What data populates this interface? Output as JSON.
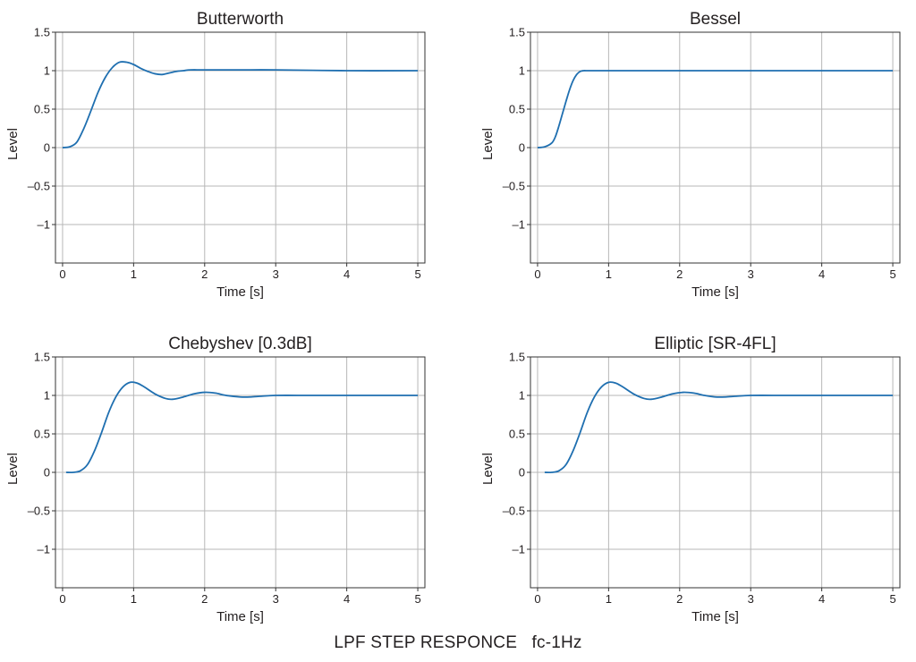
{
  "caption": "LPF STEP RESPONCE   fc-1Hz",
  "chart_data": [
    {
      "type": "line",
      "title": "Butterworth",
      "xlabel": "Time [s]",
      "ylabel": "Level",
      "xlim": [
        -0.1,
        5.1
      ],
      "ylim": [
        -1.5,
        1.5
      ],
      "xticks": [
        0,
        1,
        2,
        3,
        4,
        5
      ],
      "yticks": [
        1.5,
        1,
        0.5,
        0,
        -0.5,
        -1
      ],
      "ytick_labels": [
        "1.5",
        "1",
        "0.5",
        "0",
        "–0.5",
        "–1"
      ],
      "grid": true,
      "line_color": "#1f6fb0",
      "series": [
        {
          "x": [
            0,
            0.1,
            0.2,
            0.3,
            0.4,
            0.5,
            0.6,
            0.7,
            0.8,
            0.9,
            1.0,
            1.1,
            1.2,
            1.3,
            1.4,
            1.5,
            1.6,
            1.7,
            1.8,
            2.0,
            2.5,
            3.0,
            4.0,
            5.0
          ],
          "y": [
            0,
            0.01,
            0.07,
            0.25,
            0.48,
            0.72,
            0.91,
            1.04,
            1.11,
            1.11,
            1.08,
            1.03,
            0.99,
            0.96,
            0.95,
            0.97,
            0.99,
            1.0,
            1.01,
            1.01,
            1.01,
            1.01,
            1.0,
            1.0
          ]
        }
      ]
    },
    {
      "type": "line",
      "title": "Bessel",
      "xlabel": "Time [s]",
      "ylabel": "Level",
      "xlim": [
        -0.1,
        5.1
      ],
      "ylim": [
        -1.5,
        1.5
      ],
      "xticks": [
        0,
        1,
        2,
        3,
        4,
        5
      ],
      "yticks": [
        1.5,
        1,
        0.5,
        0,
        -0.5,
        -1
      ],
      "ytick_labels": [
        "1.5",
        "1",
        "0.5",
        "0",
        "–0.5",
        "–1"
      ],
      "grid": true,
      "line_color": "#1f6fb0",
      "series": [
        {
          "x": [
            0,
            0.1,
            0.2,
            0.25,
            0.3,
            0.35,
            0.4,
            0.45,
            0.5,
            0.55,
            0.6,
            0.65,
            0.7,
            0.8,
            1.0,
            2.0,
            3.0,
            4.0,
            5.0
          ],
          "y": [
            0,
            0.01,
            0.06,
            0.14,
            0.28,
            0.44,
            0.6,
            0.75,
            0.87,
            0.95,
            0.99,
            1.0,
            1.0,
            1.0,
            1.0,
            1.0,
            1.0,
            1.0,
            1.0
          ]
        }
      ]
    },
    {
      "type": "line",
      "title": "Chebyshev [0.3dB]",
      "xlabel": "Time [s]",
      "ylabel": "Level",
      "xlim": [
        -0.1,
        5.1
      ],
      "ylim": [
        -1.5,
        1.5
      ],
      "xticks": [
        0,
        1,
        2,
        3,
        4,
        5
      ],
      "yticks": [
        1.5,
        1,
        0.5,
        0,
        -0.5,
        -1
      ],
      "ytick_labels": [
        "1.5",
        "1",
        "0.5",
        "0",
        "–0.5",
        "–1"
      ],
      "grid": true,
      "line_color": "#1f6fb0",
      "series": [
        {
          "x": [
            0.05,
            0.15,
            0.25,
            0.35,
            0.45,
            0.55,
            0.65,
            0.75,
            0.85,
            0.95,
            1.05,
            1.15,
            1.3,
            1.45,
            1.55,
            1.7,
            1.85,
            2.0,
            2.15,
            2.3,
            2.5,
            2.65,
            2.8,
            3.0,
            3.5,
            4.0,
            5.0
          ],
          "y": [
            0.0,
            0.0,
            0.02,
            0.1,
            0.28,
            0.52,
            0.78,
            0.98,
            1.11,
            1.17,
            1.16,
            1.11,
            1.02,
            0.96,
            0.95,
            0.98,
            1.02,
            1.04,
            1.03,
            1.0,
            0.98,
            0.98,
            0.99,
            1.0,
            1.0,
            1.0,
            1.0
          ]
        }
      ]
    },
    {
      "type": "line",
      "title": "Elliptic [SR-4FL]",
      "xlabel": "Time [s]",
      "ylabel": "Level",
      "xlim": [
        -0.1,
        5.1
      ],
      "ylim": [
        -1.5,
        1.5
      ],
      "xticks": [
        0,
        1,
        2,
        3,
        4,
        5
      ],
      "yticks": [
        1.5,
        1,
        0.5,
        0,
        -0.5,
        -1
      ],
      "ytick_labels": [
        "1.5",
        "1",
        "0.5",
        "0",
        "–0.5",
        "–1"
      ],
      "grid": true,
      "line_color": "#1f6fb0",
      "series": [
        {
          "x": [
            0.1,
            0.2,
            0.3,
            0.4,
            0.5,
            0.6,
            0.7,
            0.8,
            0.9,
            1.0,
            1.1,
            1.2,
            1.35,
            1.5,
            1.6,
            1.75,
            1.9,
            2.05,
            2.2,
            2.35,
            2.5,
            2.65,
            2.8,
            3.0,
            3.5,
            4.0,
            5.0
          ],
          "y": [
            0.0,
            0.0,
            0.02,
            0.1,
            0.28,
            0.52,
            0.78,
            0.98,
            1.11,
            1.17,
            1.16,
            1.11,
            1.02,
            0.96,
            0.95,
            0.98,
            1.02,
            1.04,
            1.03,
            1.0,
            0.98,
            0.98,
            0.99,
            1.0,
            1.0,
            1.0,
            1.0
          ]
        }
      ]
    }
  ]
}
